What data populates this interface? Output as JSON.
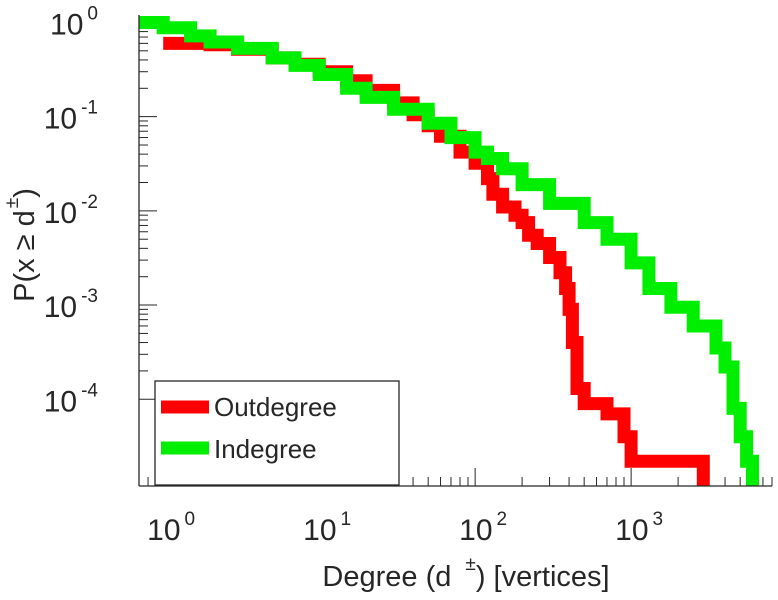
{
  "chart_data": {
    "type": "line",
    "xscale": "log",
    "yscale": "log",
    "xlim": [
      0.7,
      8000
    ],
    "ylim": [
      1.2e-05,
      1.2
    ],
    "grid": false,
    "legend_location": "bottom-left",
    "xlabel": {
      "prefix": "Degree (d",
      "sup": "±",
      "suffix": ") [vertices]"
    },
    "ylabel": {
      "prefix": "P(x ≥ d",
      "sup": "±",
      "suffix": ")"
    },
    "x_ticks": [
      {
        "value": 1,
        "base": "10",
        "exp": "0"
      },
      {
        "value": 10,
        "base": "10",
        "exp": "1"
      },
      {
        "value": 100,
        "base": "10",
        "exp": "2"
      },
      {
        "value": 1000,
        "base": "10",
        "exp": "3"
      }
    ],
    "y_ticks": [
      {
        "value": 1,
        "base": "10",
        "exp": "0"
      },
      {
        "value": 0.1,
        "base": "10",
        "exp": "-1"
      },
      {
        "value": 0.01,
        "base": "10",
        "exp": "-2"
      },
      {
        "value": 0.001,
        "base": "10",
        "exp": "-3"
      },
      {
        "value": 0.0001,
        "base": "10",
        "exp": "-4"
      }
    ],
    "series": [
      {
        "name": "Outdegree",
        "color": "#ff0000",
        "points": [
          [
            1,
            0.6
          ],
          [
            2,
            0.58
          ],
          [
            3,
            0.52
          ],
          [
            5,
            0.42
          ],
          [
            7,
            0.36
          ],
          [
            10,
            0.3
          ],
          [
            15,
            0.24
          ],
          [
            20,
            0.19
          ],
          [
            30,
            0.14
          ],
          [
            40,
            0.105
          ],
          [
            50,
            0.08
          ],
          [
            60,
            0.062
          ],
          [
            80,
            0.042
          ],
          [
            100,
            0.032
          ],
          [
            120,
            0.022
          ],
          [
            130,
            0.015
          ],
          [
            150,
            0.011
          ],
          [
            180,
            0.009
          ],
          [
            200,
            0.0075
          ],
          [
            220,
            0.0055
          ],
          [
            250,
            0.0045
          ],
          [
            300,
            0.0032
          ],
          [
            350,
            0.0022
          ],
          [
            380,
            0.0015
          ],
          [
            400,
            0.0009
          ],
          [
            420,
            0.0004
          ],
          [
            450,
            0.00013
          ],
          [
            500,
            9e-05
          ],
          [
            700,
            7e-05
          ],
          [
            900,
            4e-05
          ],
          [
            1000,
            2.2e-05
          ],
          [
            2800,
            2.2e-05
          ],
          [
            2900,
            1.2e-05
          ]
        ]
      },
      {
        "name": "Indegree",
        "color": "#00ee00",
        "points": [
          [
            0.7,
            1.0
          ],
          [
            1,
            0.88
          ],
          [
            1.5,
            0.72
          ],
          [
            2,
            0.62
          ],
          [
            3,
            0.53
          ],
          [
            5,
            0.42
          ],
          [
            7,
            0.35
          ],
          [
            10,
            0.28
          ],
          [
            15,
            0.2
          ],
          [
            20,
            0.16
          ],
          [
            30,
            0.12
          ],
          [
            50,
            0.085
          ],
          [
            70,
            0.06
          ],
          [
            100,
            0.042
          ],
          [
            120,
            0.036
          ],
          [
            150,
            0.028
          ],
          [
            200,
            0.019
          ],
          [
            300,
            0.012
          ],
          [
            500,
            0.0075
          ],
          [
            700,
            0.005
          ],
          [
            1000,
            0.0028
          ],
          [
            1300,
            0.0015
          ],
          [
            1800,
            0.00095
          ],
          [
            2500,
            0.0006
          ],
          [
            3500,
            0.00035
          ],
          [
            4000,
            0.00022
          ],
          [
            4500,
            8e-05
          ],
          [
            5000,
            4e-05
          ],
          [
            5500,
            2.2e-05
          ],
          [
            6000,
            1.2e-05
          ]
        ]
      }
    ]
  }
}
